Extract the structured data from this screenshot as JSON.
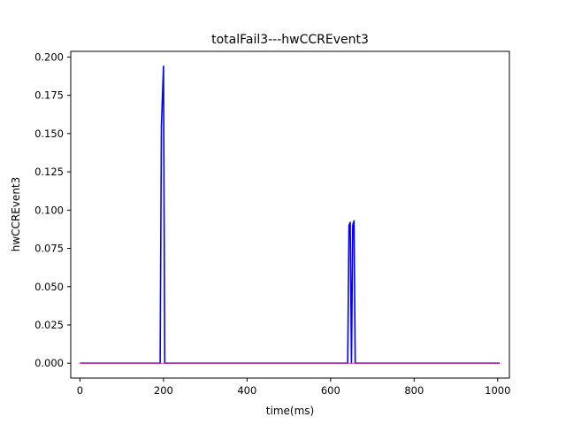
{
  "chart_data": {
    "type": "line",
    "title": "totalFail3---hwCCREvent3",
    "xlabel": "time(ms)",
    "ylabel": "hwCCREvent3",
    "xlim": [
      -22,
      1028
    ],
    "ylim": [
      -0.0097,
      0.2037
    ],
    "xticks": [
      0,
      200,
      400,
      600,
      800,
      1000
    ],
    "xtick_labels": [
      "0",
      "200",
      "400",
      "600",
      "800",
      "1000"
    ],
    "yticks": [
      0.0,
      0.025,
      0.05,
      0.075,
      0.1,
      0.125,
      0.15,
      0.175,
      0.2
    ],
    "ytick_labels": [
      "0.000",
      "0.025",
      "0.050",
      "0.075",
      "0.100",
      "0.125",
      "0.150",
      "0.175",
      "0.200"
    ],
    "grid": false,
    "series": [
      {
        "color": "#0000ff",
        "x": [
          0,
          192,
          195,
          197,
          200,
          203,
          300,
          400,
          500,
          600,
          641,
          644,
          647,
          650,
          653,
          656,
          659,
          662,
          700,
          800,
          900,
          1005
        ],
        "y": [
          0,
          0,
          0.155,
          0.17,
          0.194,
          0,
          0,
          0,
          0,
          0,
          0,
          0.09,
          0.092,
          0,
          0.09,
          0.093,
          0,
          0,
          0,
          0,
          0,
          0
        ]
      },
      {
        "color": "#e0409a",
        "x": [
          0,
          250,
          500,
          750,
          1005
        ],
        "y": [
          0,
          0,
          0,
          0,
          0
        ]
      }
    ]
  }
}
